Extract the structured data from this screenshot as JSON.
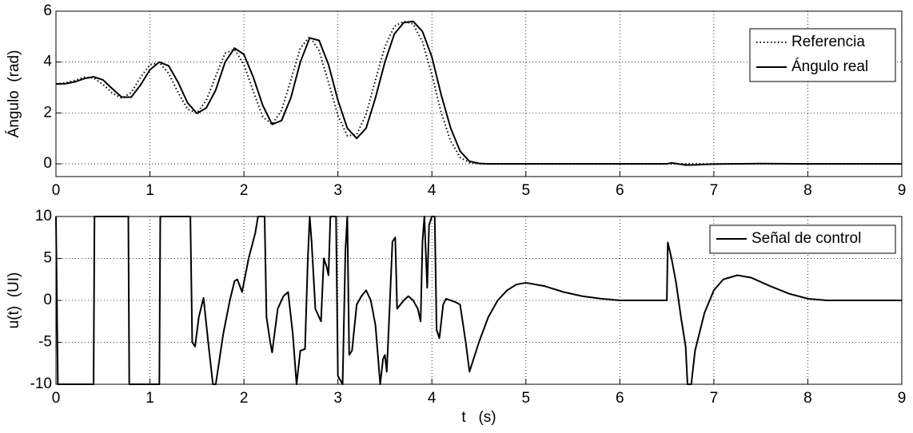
{
  "chart_data": [
    {
      "type": "line",
      "ylabel": "Ángulo  (rad)",
      "xlim": [
        0,
        9
      ],
      "xticks": [
        0,
        1,
        2,
        3,
        4,
        5,
        6,
        7,
        8,
        9
      ],
      "ylim": [
        -0.5,
        6
      ],
      "yticks": [
        0,
        2,
        4,
        6
      ],
      "grid": true,
      "legend": "upper right",
      "x": [
        0,
        0.1,
        0.2,
        0.3,
        0.4,
        0.5,
        0.6,
        0.7,
        0.8,
        0.9,
        1.0,
        1.1,
        1.2,
        1.3,
        1.4,
        1.5,
        1.6,
        1.7,
        1.8,
        1.9,
        2.0,
        2.1,
        2.2,
        2.3,
        2.4,
        2.5,
        2.6,
        2.7,
        2.8,
        2.9,
        3.0,
        3.1,
        3.2,
        3.3,
        3.4,
        3.5,
        3.6,
        3.7,
        3.8,
        3.9,
        4.0,
        4.1,
        4.2,
        4.3,
        4.4,
        4.5,
        4.6,
        5,
        5.5,
        6,
        6.5,
        6.55,
        6.7,
        6.8,
        7,
        7.5,
        8,
        8.5,
        9
      ],
      "series": [
        {
          "name": "Referencia",
          "color": "#000000",
          "linestyle": "dotted",
          "values": [
            3.14,
            3.18,
            3.28,
            3.4,
            3.38,
            3.12,
            2.78,
            2.58,
            2.8,
            3.4,
            3.9,
            3.98,
            3.55,
            2.8,
            2.15,
            2.0,
            2.5,
            3.45,
            4.35,
            4.5,
            3.9,
            2.85,
            1.85,
            1.55,
            2.1,
            3.3,
            4.55,
            5.0,
            4.45,
            3.2,
            1.9,
            1.1,
            1.15,
            1.95,
            3.3,
            4.6,
            5.4,
            5.6,
            5.5,
            4.8,
            3.5,
            2.0,
            0.9,
            0.25,
            0.05,
            0,
            0,
            0,
            0,
            0,
            0,
            0,
            0,
            0,
            0,
            0,
            0,
            0,
            0
          ]
        },
        {
          "name": "Ángulo real",
          "color": "#000000",
          "linestyle": "solid",
          "values": [
            3.14,
            3.15,
            3.22,
            3.35,
            3.42,
            3.3,
            2.95,
            2.62,
            2.62,
            3.1,
            3.7,
            4.0,
            3.85,
            3.2,
            2.4,
            1.98,
            2.2,
            2.9,
            4.0,
            4.55,
            4.3,
            3.4,
            2.3,
            1.55,
            1.7,
            2.6,
            4.0,
            4.95,
            4.85,
            3.9,
            2.5,
            1.4,
            1.0,
            1.4,
            2.6,
            4.0,
            5.1,
            5.55,
            5.6,
            5.2,
            4.2,
            2.7,
            1.4,
            0.5,
            0.1,
            0.02,
            0,
            0,
            0,
            0,
            0,
            0.04,
            -0.05,
            -0.04,
            -0.01,
            0.01,
            0,
            0,
            0
          ]
        }
      ]
    },
    {
      "type": "line",
      "ylabel": "u(t)  (UI)",
      "xlabel": "t   (s)",
      "xlim": [
        0,
        9
      ],
      "xticks": [
        0,
        1,
        2,
        3,
        4,
        5,
        6,
        7,
        8,
        9
      ],
      "ylim": [
        -10,
        10
      ],
      "yticks": [
        -10,
        -5,
        0,
        5,
        10
      ],
      "grid": true,
      "legend": "upper right",
      "x": [
        0,
        0.02,
        0.4,
        0.41,
        0.77,
        0.78,
        1.1,
        1.11,
        1.43,
        1.45,
        1.48,
        1.52,
        1.57,
        1.62,
        1.67,
        1.7,
        1.78,
        1.85,
        1.9,
        1.93,
        1.98,
        2.05,
        2.12,
        2.15,
        2.22,
        2.24,
        2.28,
        2.3,
        2.36,
        2.42,
        2.47,
        2.52,
        2.56,
        2.6,
        2.65,
        2.68,
        2.7,
        2.72,
        2.76,
        2.8,
        2.82,
        2.85,
        2.88,
        2.9,
        2.92,
        2.98,
        3.0,
        3.05,
        3.08,
        3.1,
        3.12,
        3.15,
        3.2,
        3.25,
        3.3,
        3.35,
        3.4,
        3.45,
        3.48,
        3.5,
        3.52,
        3.55,
        3.58,
        3.61,
        3.63,
        3.7,
        3.75,
        3.8,
        3.85,
        3.88,
        3.9,
        3.92,
        3.95,
        3.97,
        4.0,
        4.03,
        4.05,
        4.08,
        4.12,
        4.15,
        4.2,
        4.25,
        4.3,
        4.36,
        4.4,
        4.5,
        4.6,
        4.7,
        4.8,
        4.9,
        5.0,
        5.2,
        5.4,
        5.6,
        5.8,
        6.0,
        6.3,
        6.5,
        6.51,
        6.55,
        6.6,
        6.65,
        6.7,
        6.72,
        6.76,
        6.8,
        6.9,
        7.0,
        7.1,
        7.25,
        7.4,
        7.6,
        7.8,
        8.0,
        8.2,
        8.5,
        9.0
      ],
      "series": [
        {
          "name": "Señal de control",
          "color": "#000000",
          "linestyle": "solid",
          "values": [
            10,
            -10,
            -10,
            10,
            10,
            -10,
            -10,
            10,
            10,
            -5,
            -5.5,
            -2,
            0.3,
            -5,
            -10,
            -10,
            -4,
            0,
            2.3,
            2.5,
            1,
            5,
            8,
            10,
            10,
            -2,
            -5,
            -6.2,
            -1,
            0.5,
            1,
            -4,
            -10,
            -6,
            -5.8,
            5,
            10,
            7,
            -1,
            -2,
            -2.5,
            5,
            4,
            3,
            10,
            10,
            -9,
            -10,
            6,
            10,
            -6.5,
            -6,
            -0.5,
            0.5,
            1.2,
            0,
            -3,
            -10,
            -7,
            -6.5,
            -8.5,
            -1,
            7,
            7.5,
            -1,
            0,
            0.5,
            0,
            -1,
            -2.5,
            7,
            10,
            1.5,
            9,
            10,
            10,
            -3.5,
            -4.5,
            -0.5,
            0.2,
            0,
            -0.2,
            -0.5,
            -5,
            -8.5,
            -5,
            -2,
            0,
            1.2,
            1.9,
            2.1,
            1.7,
            1.0,
            0.5,
            0.2,
            0,
            0,
            0,
            6.9,
            5,
            2,
            -2,
            -5.5,
            -10,
            -10,
            -6,
            -1.5,
            1.2,
            2.5,
            3.0,
            2.7,
            1.7,
            0.8,
            0.2,
            0,
            0,
            0
          ]
        }
      ]
    }
  ]
}
